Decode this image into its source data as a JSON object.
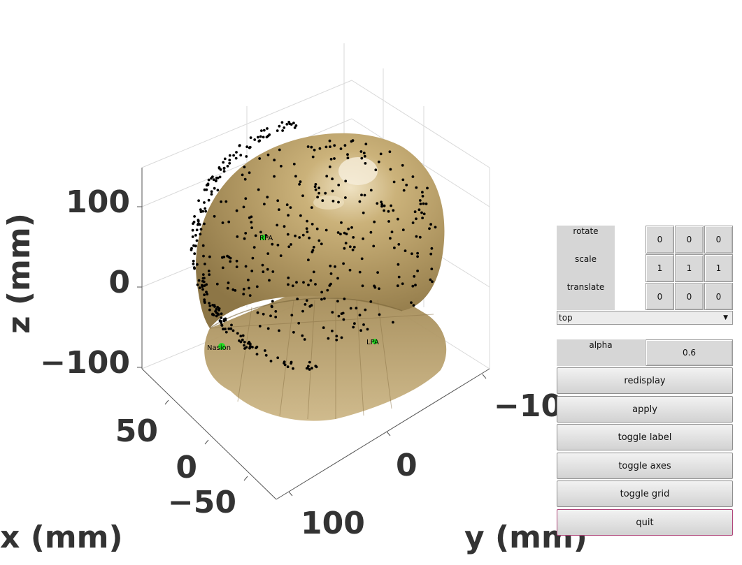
{
  "axes": {
    "x_label": "x (mm)",
    "y_label": "y (mm)",
    "z_label": "z (mm)",
    "z_ticks": [
      "100",
      "0",
      "−100"
    ],
    "x_ticks": [
      "50",
      "0",
      "−50"
    ],
    "y_ticks": [
      "−10",
      "0",
      "100"
    ]
  },
  "fiducials": {
    "nasion": "Nasion",
    "rpa": "RPA",
    "lpa": "LPA"
  },
  "colors": {
    "headshape": "#b59a62",
    "headpoints": "#000000",
    "fiducial": "#22dd22"
  },
  "panel": {
    "rotate_label": "rotate",
    "scale_label": "scale",
    "translate_label": "translate",
    "rotate_values": [
      "0",
      "0",
      "0"
    ],
    "scale_values": [
      "1",
      "1",
      "1"
    ],
    "translate_values": [
      "0",
      "0",
      "0"
    ],
    "view_select": "top",
    "alpha_label": "alpha",
    "alpha_value": "0.6",
    "buttons": {
      "redisplay": "redisplay",
      "apply": "apply",
      "toggle_label": "toggle label",
      "toggle_axes": "toggle axes",
      "toggle_grid": "toggle grid",
      "quit": "quit"
    }
  }
}
